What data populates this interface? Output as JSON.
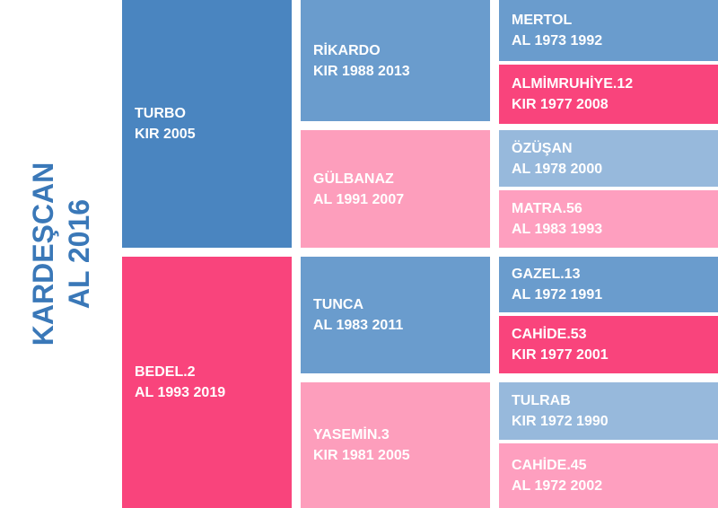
{
  "subject": {
    "name": "KARDEŞCAN",
    "info": "AL 2016"
  },
  "parents": {
    "sire": {
      "name": "TURBO",
      "info": "KIR 2005"
    },
    "dam": {
      "name": "BEDEL.2",
      "info": "AL 1993 2019"
    }
  },
  "grandparents": {
    "sire_sire": {
      "name": "RİKARDO",
      "info": "KIR 1988 2013"
    },
    "sire_dam": {
      "name": "GÜLBANAZ",
      "info": "AL 1991 2007"
    },
    "dam_sire": {
      "name": "TUNCA",
      "info": "AL 1983 2011"
    },
    "dam_dam": {
      "name": "YASEMİN.3",
      "info": "KIR 1981 2005"
    }
  },
  "great_grandparents": {
    "g1": {
      "name": "MERTOL",
      "info": "AL 1973 1992"
    },
    "g2": {
      "name": "ALMİMRUHİYE.12",
      "info": "KIR 1977 2008"
    },
    "g3": {
      "name": "ÖZÜŞAN",
      "info": "AL 1978 2000"
    },
    "g4": {
      "name": "MATRA.56",
      "info": "AL 1983 1993"
    },
    "g5": {
      "name": "GAZEL.13",
      "info": "AL 1972 1991"
    },
    "g6": {
      "name": "CAHİDE.53",
      "info": "KIR 1977 2001"
    },
    "g7": {
      "name": "TULRAB",
      "info": "KIR 1972 1990"
    },
    "g8": {
      "name": "CAHİDE.45",
      "info": "AL 1972 2002"
    }
  }
}
